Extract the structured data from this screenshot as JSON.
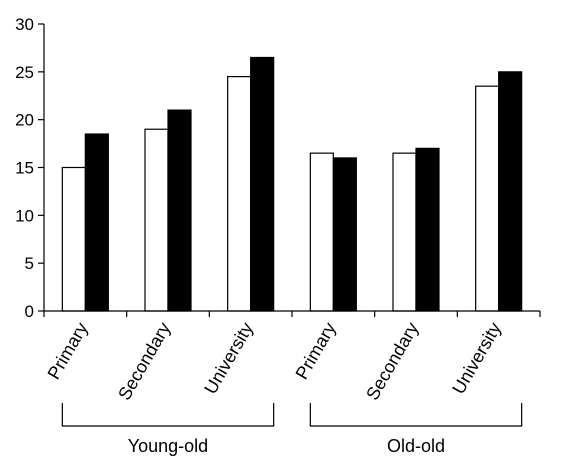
{
  "chart_data": {
    "type": "bar",
    "title": "",
    "xlabel": "",
    "ylabel": "",
    "ylim": [
      0,
      30
    ],
    "yticks": [
      0,
      5,
      10,
      15,
      20,
      25,
      30
    ],
    "grid": false,
    "legend": "none",
    "categories": [
      "Primary",
      "Secondary",
      "University",
      "Primary",
      "Secondary",
      "University"
    ],
    "groups": [
      {
        "label": "Young-old",
        "categories": [
          0,
          1,
          2
        ]
      },
      {
        "label": "Old-old",
        "categories": [
          3,
          4,
          5
        ]
      }
    ],
    "series": [
      {
        "color": "#ffffff",
        "values": [
          15,
          19,
          24.5,
          16.5,
          16.5,
          23.5
        ]
      },
      {
        "color": "#000000",
        "values": [
          18.5,
          21,
          26.5,
          16,
          17,
          25
        ]
      }
    ]
  }
}
